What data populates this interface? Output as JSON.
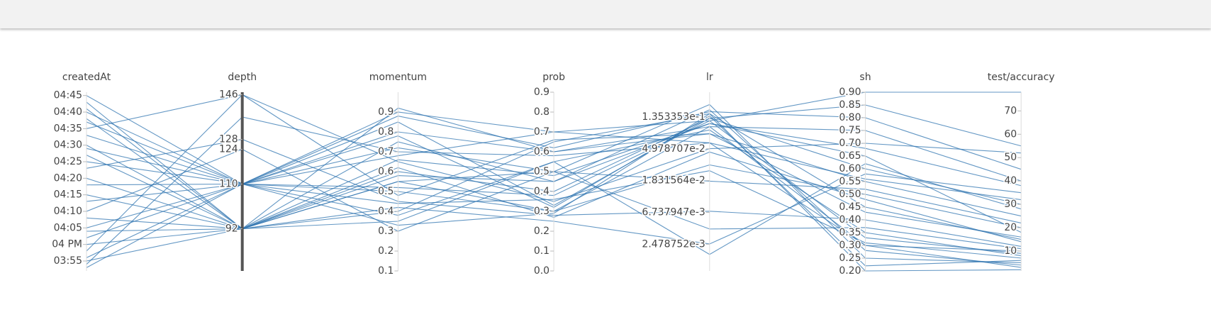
{
  "chart_data": {
    "type": "parallel",
    "color": "#2f74b0",
    "dimensions": [
      {
        "name": "createdAt",
        "ylim": [
          952,
          1006
        ],
        "yticks": [
          {
            "value": 1005,
            "label": "04:45"
          },
          {
            "value": 1000,
            "label": "04:40"
          },
          {
            "value": 995,
            "label": "04:35"
          },
          {
            "value": 990,
            "label": "04:30"
          },
          {
            "value": 985,
            "label": "04:25"
          },
          {
            "value": 980,
            "label": "04:20"
          },
          {
            "value": 975,
            "label": "04:15"
          },
          {
            "value": 970,
            "label": "04:10"
          },
          {
            "value": 965,
            "label": "04:05"
          },
          {
            "value": 960,
            "label": "04 PM"
          },
          {
            "value": 955,
            "label": "03:55"
          }
        ]
      },
      {
        "name": "depth",
        "ylim": [
          75,
          147
        ],
        "yticks": [
          146,
          128,
          124,
          110,
          92
        ]
      },
      {
        "name": "momentum",
        "ylim": [
          0.1,
          1.0
        ],
        "yticks": [
          0.9,
          0.8,
          0.7,
          0.6,
          0.5,
          0.4,
          0.3,
          0.2,
          0.1
        ]
      },
      {
        "name": "prob",
        "ylim": [
          0,
          0.9
        ],
        "yticks": [
          0.9,
          0.8,
          0.7,
          0.6,
          0.5,
          0.4,
          0.3,
          0.2,
          0.1,
          {
            "value": 0,
            "label": "0.0"
          }
        ]
      },
      {
        "name": "lr",
        "log": true,
        "ylim": [
          0.00107,
          0.295
        ],
        "yticks": [
          {
            "value": 0.1353353,
            "label": "1.353353e-1"
          },
          {
            "value": 0.04978707,
            "label": "4.978707e-2"
          },
          {
            "value": 0.01831564,
            "label": "1.831564e-2"
          },
          {
            "value": 0.006737947,
            "label": "6.737947e-3"
          },
          {
            "value": 0.002478752,
            "label": "2.478752e-3"
          }
        ]
      },
      {
        "name": "sh",
        "ylim": [
          0.2,
          0.9
        ],
        "yticks": [
          {
            "value": 0.9,
            "label": "0.90"
          },
          0.85,
          {
            "value": 0.8,
            "label": "0.80"
          },
          0.75,
          {
            "value": 0.7,
            "label": "0.70"
          },
          0.65,
          {
            "value": 0.6,
            "label": "0.60"
          },
          0.55,
          {
            "value": 0.5,
            "label": "0.50"
          },
          0.45,
          {
            "value": 0.4,
            "label": "0.40"
          },
          0.35,
          {
            "value": 0.3,
            "label": "0.30"
          },
          0.25,
          {
            "value": 0.2,
            "label": "0.20"
          }
        ]
      },
      {
        "name": "test/accuracy",
        "ylim": [
          1.5,
          78
        ],
        "yticks": [
          70,
          60,
          50,
          40,
          30,
          20,
          10
        ]
      }
    ],
    "rows": [
      [
        1005,
        110,
        0.9,
        0.7,
        0.12,
        0.9,
        78
      ],
      [
        1003,
        92,
        0.55,
        0.3,
        0.1,
        0.3,
        10
      ],
      [
        1000,
        110,
        0.8,
        0.6,
        0.08,
        0.55,
        25
      ],
      [
        998,
        92,
        0.4,
        0.65,
        0.15,
        0.45,
        15
      ],
      [
        995,
        146,
        0.65,
        0.35,
        0.05,
        0.7,
        52
      ],
      [
        993,
        110,
        0.72,
        0.5,
        0.2,
        0.25,
        5
      ],
      [
        990,
        92,
        0.6,
        0.4,
        0.13,
        0.6,
        30
      ],
      [
        989,
        110,
        0.5,
        0.3,
        0.03,
        0.5,
        20
      ],
      [
        987,
        92,
        0.35,
        0.55,
        0.09,
        0.35,
        8
      ],
      [
        985,
        110,
        0.88,
        0.62,
        0.16,
        0.8,
        45
      ],
      [
        983,
        128,
        0.45,
        0.28,
        0.007,
        0.4,
        12
      ],
      [
        980,
        92,
        0.58,
        0.45,
        0.11,
        0.65,
        18
      ],
      [
        978,
        110,
        0.68,
        0.7,
        0.06,
        0.3,
        3
      ],
      [
        975,
        92,
        0.42,
        0.25,
        0.0025,
        0.58,
        35
      ],
      [
        973,
        110,
        0.78,
        0.32,
        0.14,
        0.22,
        6
      ],
      [
        970,
        124,
        0.3,
        0.5,
        0.018,
        0.52,
        22
      ],
      [
        968,
        92,
        0.92,
        0.6,
        0.1,
        0.75,
        40
      ],
      [
        965,
        110,
        0.52,
        0.38,
        0.12,
        0.33,
        9
      ],
      [
        964,
        92,
        0.62,
        0.27,
        0.045,
        0.48,
        14
      ],
      [
        962,
        110,
        0.38,
        0.55,
        0.0018,
        0.62,
        28
      ],
      [
        960,
        92,
        0.75,
        0.45,
        0.17,
        0.28,
        4
      ],
      [
        958,
        146,
        0.48,
        0.66,
        0.08,
        0.43,
        16
      ],
      [
        956,
        110,
        0.85,
        0.33,
        0.13,
        0.85,
        55
      ],
      [
        955,
        92,
        0.55,
        0.5,
        0.004,
        0.37,
        11
      ],
      [
        954,
        137,
        0.7,
        0.58,
        0.06,
        0.56,
        32
      ],
      [
        953,
        110,
        0.33,
        0.29,
        0.15,
        0.2,
        2
      ],
      [
        1001,
        92,
        0.66,
        0.48,
        0.11,
        0.68,
        38
      ],
      [
        997,
        110,
        0.44,
        0.36,
        0.025,
        0.31,
        7
      ]
    ]
  }
}
